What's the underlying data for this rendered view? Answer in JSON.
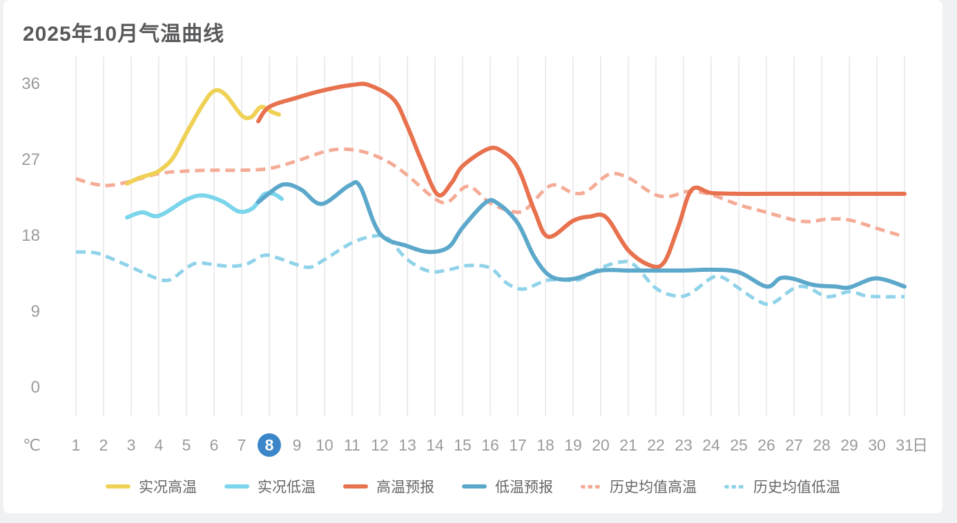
{
  "chart_data": {
    "type": "line",
    "title": "2025年10月气温曲线",
    "y_axis": {
      "unit": "℃",
      "ticks": [
        36,
        27,
        18,
        9,
        0
      ],
      "min": 0,
      "max": 36
    },
    "x_axis": {
      "labels": [
        1,
        2,
        3,
        4,
        5,
        6,
        7,
        8,
        9,
        10,
        11,
        12,
        13,
        14,
        15,
        16,
        17,
        18,
        19,
        20,
        21,
        22,
        23,
        24,
        25,
        26,
        27,
        28,
        29,
        30,
        31
      ],
      "suffix": "日",
      "highlighted_day": 8
    },
    "grid": {
      "vertical": true,
      "horizontal": false
    },
    "legend_position": "bottom",
    "highlight": {
      "day": 8,
      "badge_color": "#3b86c8",
      "text_color": "#ffffff"
    },
    "series": [
      {
        "key": "actual-high",
        "name": "实况高温",
        "color": "#efd155",
        "style": "solid",
        "points": [
          [
            2.85,
            24.2
          ],
          [
            3.3,
            24.9
          ],
          [
            3.7,
            25.3
          ],
          [
            4,
            25.7
          ],
          [
            4.5,
            27.2
          ],
          [
            5,
            30.2
          ],
          [
            5.6,
            33.6
          ],
          [
            6,
            35.2
          ],
          [
            6.4,
            34.8
          ],
          [
            7,
            32.3
          ],
          [
            7.35,
            32.1
          ],
          [
            7.7,
            33.3
          ],
          [
            8.1,
            32.7
          ],
          [
            8.35,
            32.4
          ]
        ]
      },
      {
        "key": "actual-low",
        "name": "实况低温",
        "color": "#7bd5eb",
        "style": "solid",
        "points": [
          [
            2.85,
            20.2
          ],
          [
            3.4,
            20.8
          ],
          [
            4,
            20.4
          ],
          [
            5,
            22.3
          ],
          [
            5.6,
            22.8
          ],
          [
            6.3,
            22.1
          ],
          [
            6.9,
            20.9
          ],
          [
            7.4,
            21.3
          ],
          [
            7.8,
            22.9
          ],
          [
            8.15,
            23.0
          ],
          [
            8.45,
            22.4
          ]
        ]
      },
      {
        "key": "forecast-high",
        "name": "高温预报",
        "color": "#e8714e",
        "style": "solid",
        "points": [
          [
            7.6,
            31.6
          ],
          [
            8,
            33.3
          ],
          [
            9,
            34.4
          ],
          [
            10,
            35.3
          ],
          [
            11,
            35.9
          ],
          [
            11.6,
            35.9
          ],
          [
            12.5,
            34.2
          ],
          [
            13,
            31.0
          ],
          [
            13.5,
            27.0
          ],
          [
            14.1,
            22.9
          ],
          [
            14.6,
            24.3
          ],
          [
            15,
            26.3
          ],
          [
            15.9,
            28.3
          ],
          [
            16.4,
            28.1
          ],
          [
            17,
            26.1
          ],
          [
            17.6,
            21.0
          ],
          [
            18.1,
            17.9
          ],
          [
            19,
            19.8
          ],
          [
            19.6,
            20.3
          ],
          [
            20.2,
            20.2
          ],
          [
            21,
            16.3
          ],
          [
            21.8,
            14.5
          ],
          [
            22.3,
            14.9
          ],
          [
            22.8,
            19.0
          ],
          [
            23.3,
            23.5
          ],
          [
            24,
            23.1
          ],
          [
            25,
            23.0
          ],
          [
            26,
            23.0
          ],
          [
            27,
            23.0
          ],
          [
            28,
            23.0
          ],
          [
            29,
            23.0
          ],
          [
            30,
            23.0
          ],
          [
            31,
            23.0
          ]
        ]
      },
      {
        "key": "forecast-low",
        "name": "低温预报",
        "color": "#5ca8cb",
        "style": "solid",
        "points": [
          [
            7.6,
            22.0
          ],
          [
            8.3,
            23.8
          ],
          [
            8.7,
            24.1
          ],
          [
            9.2,
            23.4
          ],
          [
            9.9,
            21.8
          ],
          [
            10.9,
            24.0
          ],
          [
            11.3,
            23.8
          ],
          [
            12,
            18.3
          ],
          [
            13,
            16.8
          ],
          [
            13.8,
            16.1
          ],
          [
            14.5,
            16.7
          ],
          [
            15,
            19.0
          ],
          [
            15.85,
            22.0
          ],
          [
            16.3,
            21.8
          ],
          [
            17,
            19.5
          ],
          [
            17.6,
            15.5
          ],
          [
            18.2,
            13.2
          ],
          [
            19,
            12.9
          ],
          [
            20,
            13.9
          ],
          [
            21,
            13.9
          ],
          [
            22,
            13.9
          ],
          [
            23,
            13.9
          ],
          [
            24,
            14.0
          ],
          [
            25,
            13.7
          ],
          [
            26,
            12.0
          ],
          [
            26.5,
            13.0
          ],
          [
            27,
            12.9
          ],
          [
            27.7,
            12.2
          ],
          [
            28.5,
            12.0
          ],
          [
            29,
            11.9
          ],
          [
            29.8,
            12.9
          ],
          [
            30.3,
            12.8
          ],
          [
            31,
            12.0
          ]
        ]
      },
      {
        "key": "hist-avg-high",
        "name": "历史均值高温",
        "color": "#f5ac97",
        "style": "dashed",
        "points": [
          [
            1,
            24.8
          ],
          [
            1.6,
            24.2
          ],
          [
            2.2,
            24.0
          ],
          [
            3,
            24.5
          ],
          [
            4,
            25.4
          ],
          [
            5,
            25.7
          ],
          [
            6,
            25.8
          ],
          [
            7,
            25.8
          ],
          [
            8,
            26.0
          ],
          [
            9,
            26.9
          ],
          [
            10,
            28.0
          ],
          [
            10.7,
            28.3
          ],
          [
            11.5,
            27.9
          ],
          [
            12.3,
            26.8
          ],
          [
            13,
            25.2
          ],
          [
            14,
            22.4
          ],
          [
            14.5,
            22.1
          ],
          [
            15.2,
            23.9
          ],
          [
            16,
            21.9
          ],
          [
            16.8,
            20.9
          ],
          [
            17.3,
            21.2
          ],
          [
            18.2,
            24.0
          ],
          [
            19,
            23.1
          ],
          [
            19.5,
            23.3
          ],
          [
            20.3,
            25.3
          ],
          [
            21,
            24.9
          ],
          [
            21.9,
            23.0
          ],
          [
            22.5,
            22.7
          ],
          [
            23.2,
            23.3
          ],
          [
            24,
            22.9
          ],
          [
            25,
            21.7
          ],
          [
            26,
            20.8
          ],
          [
            27,
            19.9
          ],
          [
            27.6,
            19.7
          ],
          [
            28.2,
            20.0
          ],
          [
            29,
            19.9
          ],
          [
            30,
            18.9
          ],
          [
            31,
            17.9
          ]
        ]
      },
      {
        "key": "hist-avg-low",
        "name": "历史均值低温",
        "color": "#90d3e9",
        "style": "dashed",
        "points": [
          [
            1,
            16.1
          ],
          [
            1.7,
            16.0
          ],
          [
            2.3,
            15.3
          ],
          [
            3,
            14.3
          ],
          [
            3.9,
            13.0
          ],
          [
            4.4,
            12.8
          ],
          [
            5,
            14.2
          ],
          [
            5.4,
            14.8
          ],
          [
            6,
            14.6
          ],
          [
            6.6,
            14.4
          ],
          [
            7.2,
            14.7
          ],
          [
            7.8,
            15.7
          ],
          [
            8.3,
            15.4
          ],
          [
            9,
            14.6
          ],
          [
            9.5,
            14.3
          ],
          [
            10,
            15.2
          ],
          [
            11,
            17.2
          ],
          [
            11.8,
            18.0
          ],
          [
            12.3,
            17.7
          ],
          [
            13,
            15.2
          ],
          [
            13.8,
            13.8
          ],
          [
            14.5,
            14.0
          ],
          [
            15.2,
            14.5
          ],
          [
            16,
            14.2
          ],
          [
            16.6,
            12.4
          ],
          [
            17.2,
            11.7
          ],
          [
            18,
            12.7
          ],
          [
            18.6,
            12.8
          ],
          [
            19.2,
            12.8
          ],
          [
            20,
            14.2
          ],
          [
            20.7,
            14.9
          ],
          [
            21.2,
            14.6
          ],
          [
            22,
            11.8
          ],
          [
            22.7,
            10.9
          ],
          [
            23.2,
            11.1
          ],
          [
            24,
            13.0
          ],
          [
            24.4,
            13.1
          ],
          [
            25,
            11.8
          ],
          [
            25.7,
            10.3
          ],
          [
            26.2,
            10.0
          ],
          [
            27,
            11.8
          ],
          [
            27.5,
            11.9
          ],
          [
            28.2,
            10.8
          ],
          [
            29,
            11.4
          ],
          [
            29.6,
            10.9
          ],
          [
            30.2,
            10.8
          ],
          [
            31,
            10.8
          ]
        ]
      }
    ]
  }
}
